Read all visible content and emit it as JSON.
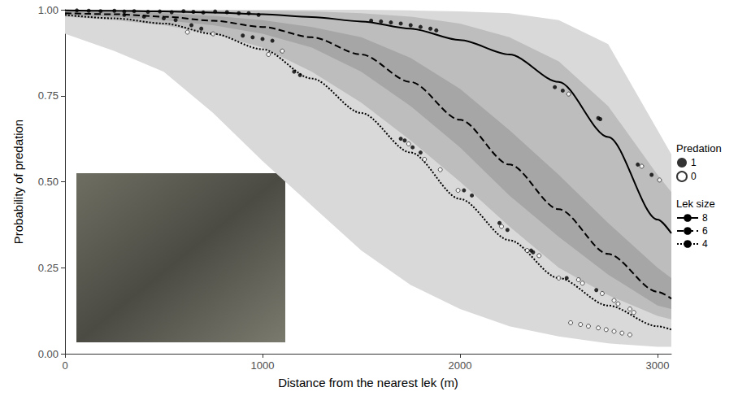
{
  "chart_data": {
    "type": "line",
    "x_label": "Distance from the nearest lek (m)",
    "y_label": "Probability of predation",
    "xlim": [
      0,
      3070
    ],
    "ylim": [
      0,
      1
    ],
    "xticks": [
      0,
      1000,
      2000,
      3000
    ],
    "yticks": [
      {
        "value": 0,
        "label": "0.00"
      },
      {
        "value": 0.25,
        "label": "0.25"
      },
      {
        "value": 0.5,
        "label": "0.50"
      },
      {
        "value": 0.75,
        "label": "0.75"
      },
      {
        "value": 1,
        "label": "1.00"
      }
    ],
    "grid": false,
    "legend": "right",
    "legend_groups": [
      {
        "title": "Predation",
        "series": [
          "1",
          "0"
        ]
      },
      {
        "title": "Lek size",
        "series": [
          "8",
          "6",
          "4"
        ]
      }
    ],
    "x": [
      0,
      250,
      500,
      750,
      1000,
      1250,
      1500,
      1750,
      2000,
      2250,
      2500,
      2750,
      3000,
      3070
    ],
    "bands": [
      {
        "color": "#d9d9d9",
        "lower": [
          0.93,
          0.88,
          0.82,
          0.7,
          0.56,
          0.43,
          0.3,
          0.2,
          0.13,
          0.08,
          0.05,
          0.03,
          0.02,
          0.02
        ],
        "upper": [
          1,
          1,
          1,
          1,
          1,
          1,
          1,
          0.998,
          0.995,
          0.99,
          0.97,
          0.9,
          0.65,
          0.58
        ]
      },
      {
        "color": "#bdbdbd",
        "lower": [
          0.98,
          0.97,
          0.955,
          0.93,
          0.89,
          0.82,
          0.73,
          0.62,
          0.5,
          0.37,
          0.25,
          0.17,
          0.11,
          0.1
        ],
        "upper": [
          1,
          1,
          0.999,
          0.998,
          0.997,
          0.995,
          0.99,
          0.98,
          0.96,
          0.92,
          0.85,
          0.72,
          0.52,
          0.47
        ]
      },
      {
        "color": "#a6a6a6",
        "lower": [
          0.985,
          0.98,
          0.97,
          0.955,
          0.93,
          0.89,
          0.82,
          0.72,
          0.6,
          0.46,
          0.34,
          0.23,
          0.14,
          0.13
        ],
        "upper": [
          0.995,
          0.993,
          0.99,
          0.982,
          0.97,
          0.95,
          0.92,
          0.86,
          0.77,
          0.65,
          0.52,
          0.38,
          0.25,
          0.22
        ]
      }
    ],
    "series": [
      {
        "name": "8",
        "type": "line",
        "color": "#000000",
        "line_style": "solid",
        "values": [
          0.998,
          0.997,
          0.995,
          0.992,
          0.987,
          0.979,
          0.966,
          0.945,
          0.912,
          0.87,
          0.79,
          0.63,
          0.39,
          0.35
        ]
      },
      {
        "name": "6",
        "type": "line",
        "color": "#000000",
        "line_style": "dashed",
        "values": [
          0.99,
          0.987,
          0.98,
          0.968,
          0.95,
          0.92,
          0.87,
          0.79,
          0.68,
          0.55,
          0.42,
          0.29,
          0.18,
          0.16
        ]
      },
      {
        "name": "4",
        "type": "line",
        "color": "#000000",
        "line_style": "dotted",
        "values": [
          0.985,
          0.975,
          0.96,
          0.93,
          0.885,
          0.8,
          0.7,
          0.585,
          0.45,
          0.33,
          0.22,
          0.14,
          0.08,
          0.07
        ]
      },
      {
        "name": "1",
        "type": "scatter",
        "color": "#000000",
        "marker": "filled",
        "points": [
          [
            60,
            0.998
          ],
          [
            120,
            0.997
          ],
          [
            180,
            0.996
          ],
          [
            250,
            0.997
          ],
          [
            300,
            0.995
          ],
          [
            350,
            0.996
          ],
          [
            420,
            0.994
          ],
          [
            480,
            0.995
          ],
          [
            540,
            0.993
          ],
          [
            600,
            0.996
          ],
          [
            650,
            0.994
          ],
          [
            700,
            0.992
          ],
          [
            760,
            0.995
          ],
          [
            820,
            0.993
          ],
          [
            880,
            0.99
          ],
          [
            930,
            0.99
          ],
          [
            980,
            0.985
          ],
          [
            300,
            0.985
          ],
          [
            400,
            0.98
          ],
          [
            500,
            0.975
          ],
          [
            560,
            0.97
          ],
          [
            640,
            0.955
          ],
          [
            690,
            0.945
          ],
          [
            900,
            0.925
          ],
          [
            950,
            0.92
          ],
          [
            1000,
            0.915
          ],
          [
            1050,
            0.91
          ],
          [
            1160,
            0.82
          ],
          [
            1190,
            0.81
          ],
          [
            1550,
            0.968
          ],
          [
            1600,
            0.966
          ],
          [
            1650,
            0.963
          ],
          [
            1700,
            0.96
          ],
          [
            1750,
            0.955
          ],
          [
            1800,
            0.95
          ],
          [
            1850,
            0.945
          ],
          [
            1880,
            0.94
          ],
          [
            2480,
            0.775
          ],
          [
            2520,
            0.765
          ],
          [
            2700,
            0.685
          ],
          [
            2710,
            0.682
          ],
          [
            2900,
            0.55
          ],
          [
            2970,
            0.52
          ],
          [
            1700,
            0.625
          ],
          [
            1720,
            0.62
          ],
          [
            1760,
            0.6
          ],
          [
            1800,
            0.585
          ],
          [
            2020,
            0.475
          ],
          [
            2060,
            0.46
          ],
          [
            2200,
            0.38
          ],
          [
            2240,
            0.36
          ],
          [
            2360,
            0.3
          ],
          [
            2370,
            0.295
          ],
          [
            2540,
            0.22
          ],
          [
            2690,
            0.185
          ]
        ]
      },
      {
        "name": "0",
        "type": "scatter",
        "color": "#000000",
        "marker": "hollow",
        "points": [
          [
            620,
            0.935
          ],
          [
            750,
            0.93
          ],
          [
            1030,
            0.87
          ],
          [
            1100,
            0.88
          ],
          [
            1740,
            0.61
          ],
          [
            1820,
            0.565
          ],
          [
            1900,
            0.535
          ],
          [
            1990,
            0.475
          ],
          [
            2210,
            0.37
          ],
          [
            2340,
            0.3
          ],
          [
            2400,
            0.285
          ],
          [
            2500,
            0.22
          ],
          [
            2600,
            0.215
          ],
          [
            2620,
            0.205
          ],
          [
            2550,
            0.755
          ],
          [
            2720,
            0.175
          ],
          [
            2780,
            0.155
          ],
          [
            2800,
            0.145
          ],
          [
            2860,
            0.13
          ],
          [
            2880,
            0.12
          ],
          [
            2920,
            0.545
          ],
          [
            3010,
            0.505
          ],
          [
            2560,
            0.09
          ],
          [
            2610,
            0.085
          ],
          [
            2650,
            0.08
          ],
          [
            2700,
            0.075
          ],
          [
            2740,
            0.07
          ],
          [
            2780,
            0.065
          ],
          [
            2820,
            0.06
          ],
          [
            2860,
            0.055
          ]
        ]
      }
    ]
  }
}
